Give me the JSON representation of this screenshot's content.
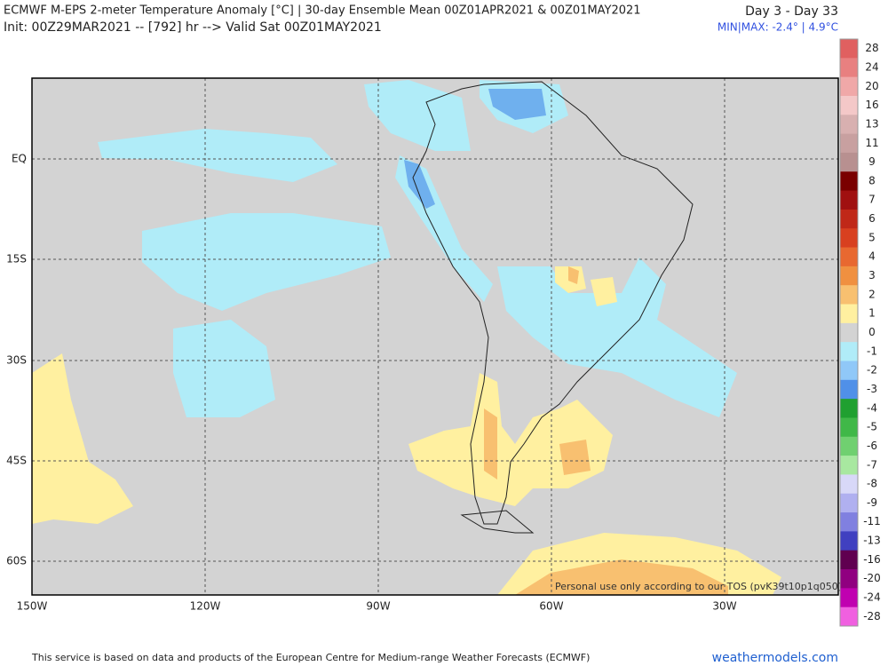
{
  "header": {
    "title": "ECMWF M-EPS 2-meter Temperature Anomaly [°C] | 30-day Ensemble Mean 00Z01APR2021 & 00Z01MAY2021",
    "subtitle": "Init: 00Z29MAR2021 -- [792] hr --> Valid Sat 00Z01MAY2021",
    "period": "Day 3 - Day 33",
    "minmax": "MIN|MAX: -2.4° | 4.9°C"
  },
  "map": {
    "lon_labels": [
      "150W",
      "120W",
      "90W",
      "60W",
      "30W"
    ],
    "lat_labels": [
      "EQ",
      "15S",
      "30S",
      "45S",
      "60S"
    ],
    "watermark": "Personal use only according to our TOS (pvK39t10p1q050)"
  },
  "colorbar": {
    "labels": [
      "28",
      "24",
      "20",
      "16",
      "13",
      "11",
      "9",
      "8",
      "7",
      "6",
      "5",
      "4",
      "3",
      "2",
      "1",
      "0",
      "-1",
      "-2",
      "-3",
      "-4",
      "-5",
      "-6",
      "-7",
      "-8",
      "-9",
      "-11",
      "-13",
      "-16",
      "-20",
      "-24",
      "-28"
    ]
  },
  "footer": {
    "notice": "This service is based on data and products of the European Centre for Medium-range Weather Forecasts (ECMWF)",
    "site": "weathermodels.com"
  }
}
